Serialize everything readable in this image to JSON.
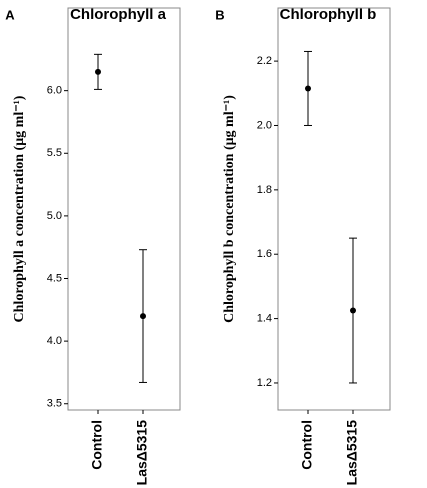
{
  "chart_data": [
    {
      "type": "errorbar",
      "panel": "A",
      "title": "Chlorophyll a",
      "y_label": "Chlorophyll a concentration (μg ml⁻¹)",
      "categories": [
        "Control",
        "LasΔ5315"
      ],
      "values": [
        6.15,
        4.2
      ],
      "errors": [
        0.14,
        0.53
      ],
      "color": "#000000",
      "ylim": [
        3.45,
        6.66
      ],
      "yticks": [
        3.5,
        {
          "value": 4,
          "label": "4.0"
        },
        4.5,
        {
          "value": 5,
          "label": "5.0"
        },
        5.5,
        {
          "value": 6,
          "label": "6.0"
        }
      ]
    },
    {
      "type": "errorbar",
      "panel": "B",
      "title": "Chlorophyll b",
      "y_label": "Chlorophyll b concentration (μg ml⁻¹)",
      "categories": [
        "Control",
        "LasΔ5315"
      ],
      "values": [
        2.115,
        1.425
      ],
      "errors": [
        0.115,
        0.225
      ],
      "color": "#000000",
      "ylim": [
        1.116,
        2.365
      ],
      "yticks": [
        1.2,
        1.4,
        1.6,
        1.8,
        {
          "value": 2,
          "label": "2.0"
        },
        2.2
      ]
    }
  ]
}
